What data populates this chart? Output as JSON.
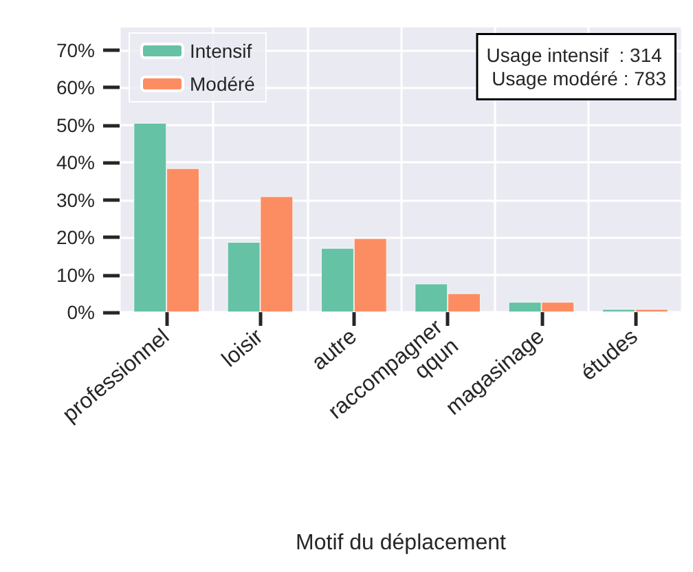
{
  "chart_data": {
    "type": "bar",
    "xlabel": "Motif du déplacement",
    "categories": [
      "professionnel",
      "loisir",
      "autre",
      "raccompagner\nqqun",
      "magasinage",
      "études"
    ],
    "series": [
      {
        "name": "Intensif",
        "color": "#66c2a5",
        "values": [
          50.5,
          18.7,
          17.1,
          7.6,
          2.7,
          0.8
        ]
      },
      {
        "name": "Modéré",
        "color": "#fc8d62",
        "values": [
          38.4,
          30.9,
          19.7,
          5.0,
          2.7,
          0.8
        ]
      }
    ],
    "ylim": [
      0,
      76
    ],
    "yticks": [
      {
        "value": 0,
        "label": "0%"
      },
      {
        "value": 10,
        "label": "10%"
      },
      {
        "value": 20,
        "label": "20%"
      },
      {
        "value": 30,
        "label": "30%"
      },
      {
        "value": 40,
        "label": "40%"
      },
      {
        "value": 50,
        "label": "50%"
      },
      {
        "value": 60,
        "label": "60%"
      },
      {
        "value": 70,
        "label": "70%"
      }
    ],
    "annotations": [
      "Usage intensif  : 314\n Usage modéré : 783"
    ],
    "grid": true,
    "legend": "top left"
  }
}
